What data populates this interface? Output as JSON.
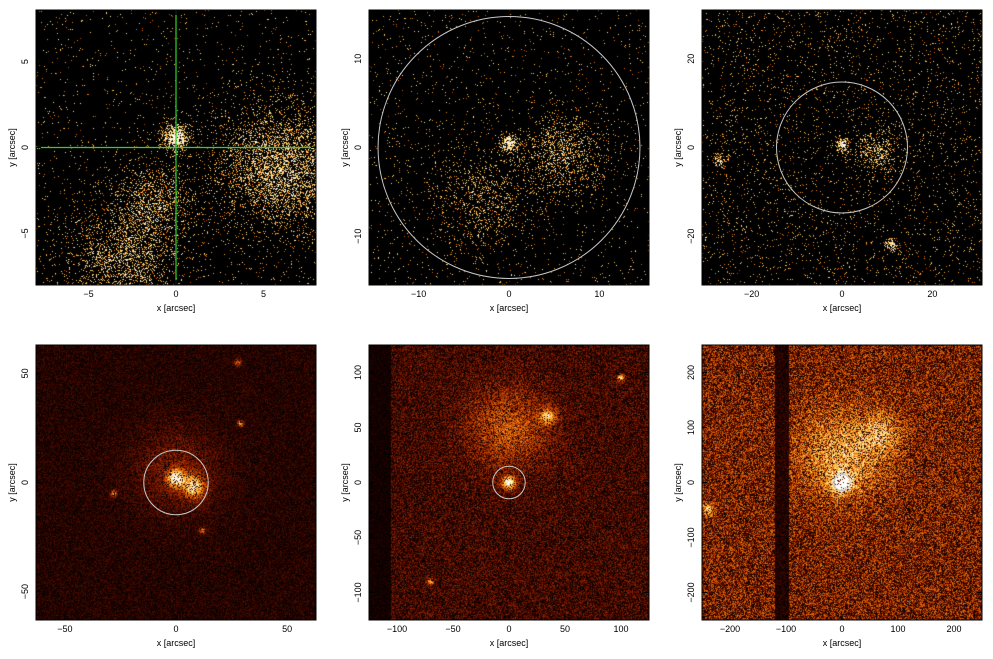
{
  "figure": {
    "background": "#ffffff",
    "frame_color": "#000000",
    "image_colormap": [
      "#000000",
      "#2a0400",
      "#6e1400",
      "#b53d00",
      "#e8750c",
      "#fbb13a",
      "#ffe27a",
      "#ffffff"
    ]
  },
  "chart_data": [
    {
      "type": "heatmap",
      "xlabel": "x [arcsec]",
      "ylabel": "y [arcsec]",
      "xlim": [
        -8,
        8
      ],
      "ylim": [
        -8,
        8
      ],
      "xticks": [
        -5,
        0,
        5
      ],
      "yticks": [
        -5,
        0,
        5
      ],
      "xtick_labels": [
        "−5",
        "0",
        "5"
      ],
      "ytick_labels": [
        "−5",
        "0",
        "5"
      ],
      "image": {
        "density": 0.02,
        "level": 0.55,
        "noise": "sparse-photons"
      },
      "crosshair": {
        "x": 0,
        "y": 0,
        "color": "#2bd52b"
      },
      "circle": null,
      "sources": [
        {
          "x": 0,
          "y": 0.6,
          "sigma": 0.5,
          "amp": 1.0
        },
        {
          "x": -1.2,
          "y": -3.0,
          "sigma": 1.2,
          "amp": 0.35
        },
        {
          "x": 6,
          "y": -1.2,
          "sigma": 2.0,
          "amp": 0.5
        },
        {
          "x": -3,
          "y": -6.5,
          "sigma": 1.8,
          "amp": 0.35
        }
      ]
    },
    {
      "type": "heatmap",
      "xlabel": "x [arcsec]",
      "ylabel": "y [arcsec]",
      "xlim": [
        -15.5,
        15.5
      ],
      "ylim": [
        -15.5,
        15.5
      ],
      "xticks": [
        -10,
        0,
        10
      ],
      "yticks": [
        -10,
        0,
        10
      ],
      "xtick_labels": [
        "−10",
        "0",
        "10"
      ],
      "ytick_labels": [
        "−10",
        "0",
        "10"
      ],
      "image": {
        "density": 0.022,
        "level": 0.55,
        "noise": "sparse-photons"
      },
      "crosshair": null,
      "circle": {
        "x": 0,
        "y": 0,
        "r": 14.5,
        "color": "#c8c8c8"
      },
      "sources": [
        {
          "x": 0,
          "y": 0.5,
          "sigma": 0.6,
          "amp": 1.0
        },
        {
          "x": 6,
          "y": -0.8,
          "sigma": 2.5,
          "amp": 0.35
        },
        {
          "x": -3,
          "y": -6,
          "sigma": 3,
          "amp": 0.2
        }
      ]
    },
    {
      "type": "heatmap",
      "xlabel": "x [arcsec]",
      "ylabel": "y [arcsec]",
      "xlim": [
        -31,
        31
      ],
      "ylim": [
        -31,
        31
      ],
      "xticks": [
        -20,
        0,
        20
      ],
      "yticks": [
        -20,
        0,
        20
      ],
      "xtick_labels": [
        "−20",
        "0",
        "20"
      ],
      "ytick_labels": [
        "−20",
        "0",
        "20"
      ],
      "image": {
        "density": 0.045,
        "level": 0.4,
        "noise": "sparse-photons"
      },
      "crosshair": null,
      "circle": {
        "x": 0,
        "y": 0,
        "r": 14.5,
        "color": "#c8c8c8"
      },
      "sources": [
        {
          "x": 0,
          "y": 0.5,
          "sigma": 0.9,
          "amp": 1.0
        },
        {
          "x": 8,
          "y": -1,
          "sigma": 2.5,
          "amp": 0.45
        },
        {
          "x": 11,
          "y": -22,
          "sigma": 0.9,
          "amp": 0.8
        },
        {
          "x": -27,
          "y": -3,
          "sigma": 1.0,
          "amp": 0.5
        }
      ]
    },
    {
      "type": "heatmap",
      "xlabel": "x [arcsec]",
      "ylabel": "y [arcsec]",
      "xlim": [
        -63,
        63
      ],
      "ylim": [
        -63,
        63
      ],
      "xticks": [
        -50,
        0,
        50
      ],
      "yticks": [
        -50,
        0,
        50
      ],
      "xtick_labels": [
        "−50",
        "0",
        "50"
      ],
      "ytick_labels": [
        "−50",
        "0",
        "50"
      ],
      "image": {
        "density": 0.55,
        "level": 0.28,
        "noise": "dense"
      },
      "crosshair": null,
      "circle": {
        "x": 0,
        "y": 0,
        "r": 14.5,
        "color": "#c8c8c8"
      },
      "sources": [
        {
          "x": 0,
          "y": 2,
          "sigma": 2.5,
          "amp": 1.0
        },
        {
          "x": 8,
          "y": -2,
          "sigma": 3.5,
          "amp": 0.75
        },
        {
          "x": 0,
          "y": 5,
          "sigma": 14,
          "amp": 0.22
        },
        {
          "x": -28,
          "y": -5,
          "sigma": 1,
          "amp": 0.6
        },
        {
          "x": 29,
          "y": 27,
          "sigma": 1,
          "amp": 0.6
        },
        {
          "x": 12,
          "y": -22,
          "sigma": 1,
          "amp": 0.5
        },
        {
          "x": 28,
          "y": 55,
          "sigma": 1.2,
          "amp": 0.45
        }
      ]
    },
    {
      "type": "heatmap",
      "xlabel": "x [arcsec]",
      "ylabel": "y [arcsec]",
      "xlim": [
        -125,
        125
      ],
      "ylim": [
        -125,
        125
      ],
      "xticks": [
        -100,
        -50,
        0,
        50,
        100
      ],
      "yticks": [
        -100,
        -50,
        0,
        50,
        100
      ],
      "xtick_labels": [
        "−100",
        "−50",
        "0",
        "50",
        "100"
      ],
      "ytick_labels": [
        "−100",
        "−50",
        "0",
        "50",
        "100"
      ],
      "image": {
        "density": 0.7,
        "level": 0.35,
        "noise": "dense"
      },
      "crosshair": null,
      "circle": {
        "x": 0,
        "y": 0,
        "r": 14.5,
        "color": "#c8c8c8"
      },
      "dark_band": {
        "from": -125,
        "to": -105
      },
      "sources": [
        {
          "x": 0,
          "y": 0,
          "sigma": 4,
          "amp": 1.0
        },
        {
          "x": 0,
          "y": 50,
          "sigma": 25,
          "amp": 0.35
        },
        {
          "x": 35,
          "y": 60,
          "sigma": 5,
          "amp": 0.6
        },
        {
          "x": 100,
          "y": 95,
          "sigma": 2,
          "amp": 0.8
        },
        {
          "x": -70,
          "y": -90,
          "sigma": 2,
          "amp": 0.6
        }
      ]
    },
    {
      "type": "heatmap",
      "xlabel": "x [arcsec]",
      "ylabel": "y [arcsec]",
      "xlim": [
        -250,
        250
      ],
      "ylim": [
        -250,
        250
      ],
      "xticks": [
        -200,
        -100,
        0,
        100,
        200
      ],
      "yticks": [
        -200,
        -100,
        0,
        100,
        200
      ],
      "xtick_labels": [
        "−200",
        "−100",
        "0",
        "100",
        "200"
      ],
      "ytick_labels": [
        "−200",
        "−100",
        "0",
        "100",
        "200"
      ],
      "image": {
        "density": 0.9,
        "level": 0.45,
        "noise": "dense"
      },
      "crosshair": null,
      "circle": {
        "x": 0,
        "y": 0,
        "r": 14.5,
        "color": "#c8c8c8"
      },
      "dark_band": {
        "from": -120,
        "to": -95
      },
      "sources": [
        {
          "x": 0,
          "y": 0,
          "sigma": 12,
          "amp": 1.0
        },
        {
          "x": 0,
          "y": 50,
          "sigma": 55,
          "amp": 0.45
        },
        {
          "x": 70,
          "y": 90,
          "sigma": 25,
          "amp": 0.35
        },
        {
          "x": -240,
          "y": -50,
          "sigma": 8,
          "amp": 0.5
        }
      ]
    }
  ]
}
